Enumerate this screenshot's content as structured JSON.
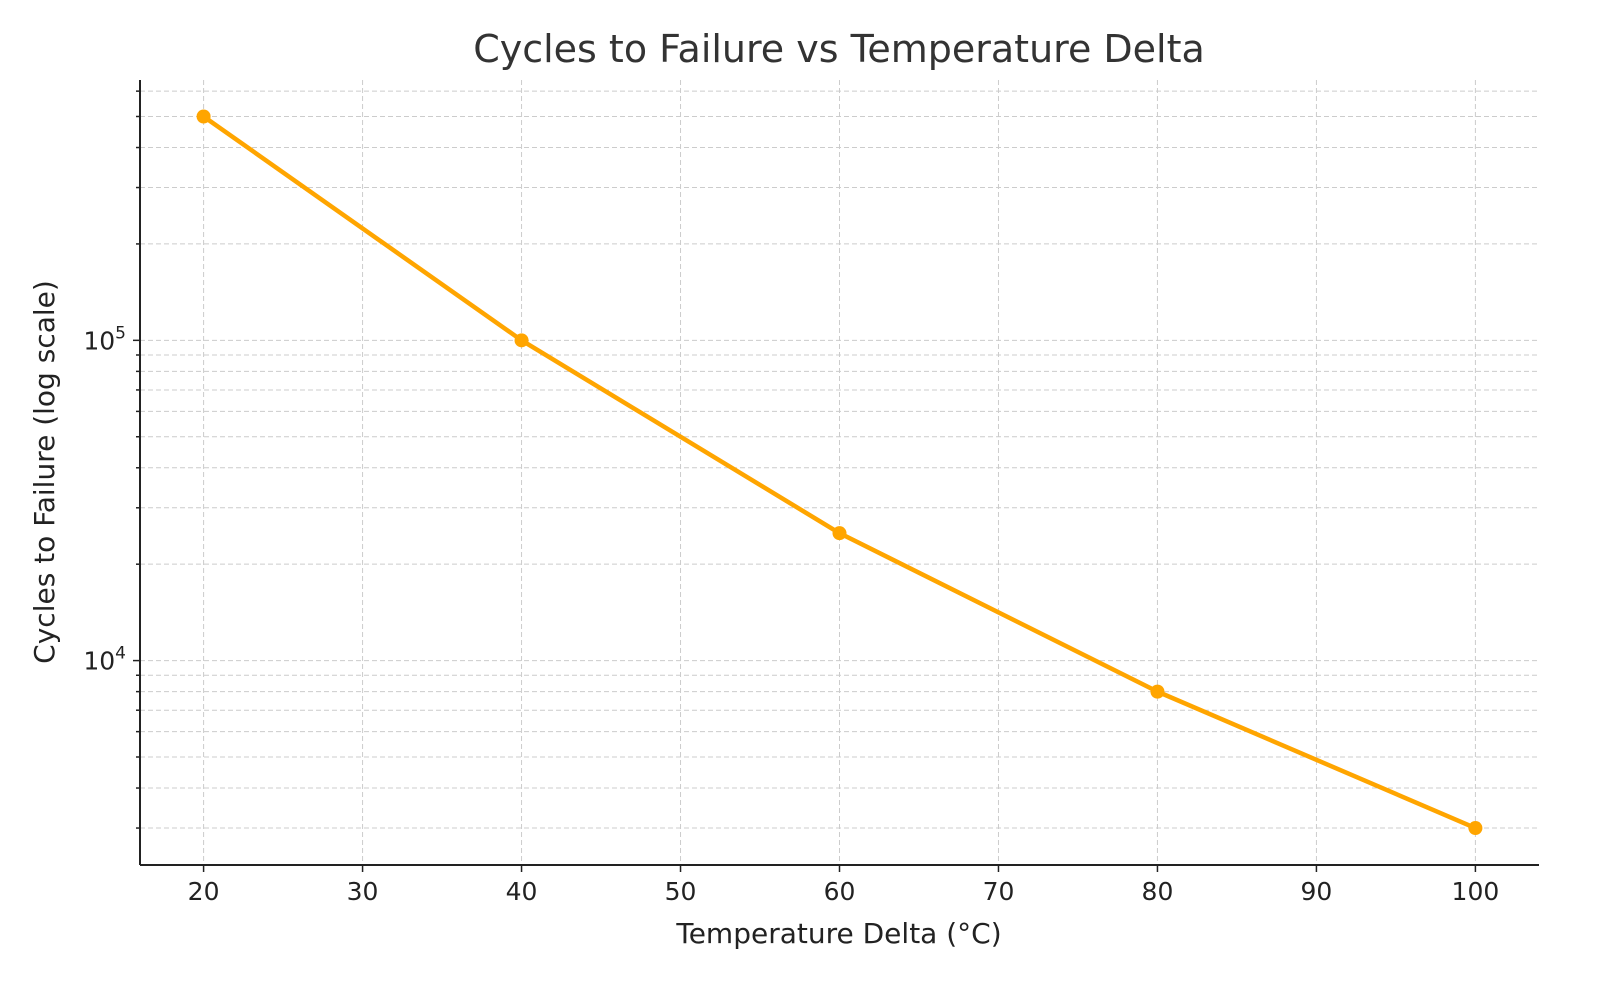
{
  "chart_data": {
    "type": "line",
    "title": "Cycles to Failure vs Temperature Delta",
    "xlabel": "Temperature Delta (°C)",
    "ylabel": "Cycles to Failure (log scale)",
    "x": [
      20,
      40,
      60,
      80,
      100
    ],
    "series": [
      {
        "values": [
          500000,
          100000,
          25000,
          8000,
          3000
        ],
        "color": "#FFA500",
        "marker": "circle"
      }
    ],
    "xlim": [
      16,
      104
    ],
    "ylim": [
      2300,
      650000
    ],
    "yscale": "log",
    "xticks": [
      20,
      30,
      40,
      50,
      60,
      70,
      80,
      90,
      100
    ],
    "yticks_major": [
      {
        "base": "10",
        "exp": "4",
        "value": 10000
      },
      {
        "base": "10",
        "exp": "5",
        "value": 100000
      }
    ],
    "grid": true
  }
}
